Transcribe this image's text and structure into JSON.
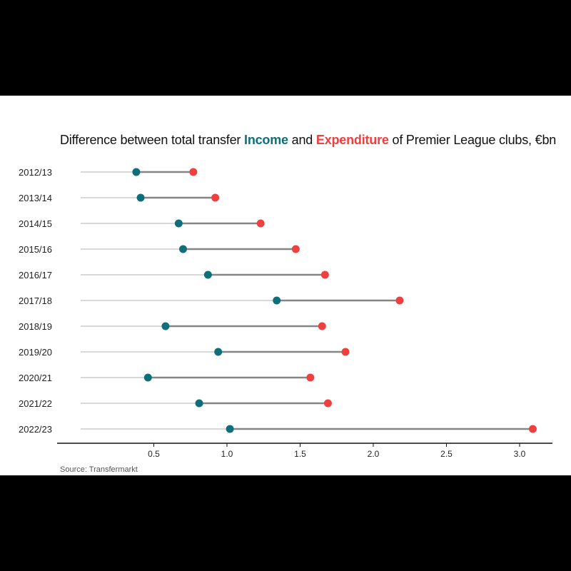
{
  "title": {
    "before": "Difference between total transfer ",
    "income_word": "Income",
    "middle": " and ",
    "expenditure_word": "Expenditure",
    "after": " of Premier League clubs, €bn"
  },
  "source": "Source: Transfermarkt",
  "colors": {
    "income": "#0e6f7b",
    "expenditure": "#ef4040",
    "connector": "#858585",
    "baseline": "#cccccc",
    "axis": "#111111",
    "text": "#222222"
  },
  "chart_data": {
    "type": "dumbbell",
    "title": "Difference between total transfer Income and Expenditure of Premier League clubs, €bn",
    "categories": [
      "2012/13",
      "2013/14",
      "2014/15",
      "2015/16",
      "2016/17",
      "2017/18",
      "2018/19",
      "2019/20",
      "2020/21",
      "2021/22",
      "2022/23"
    ],
    "series": [
      {
        "name": "Income",
        "values": [
          0.38,
          0.41,
          0.67,
          0.7,
          0.87,
          1.34,
          0.58,
          0.94,
          0.46,
          0.81,
          1.02
        ]
      },
      {
        "name": "Expenditure",
        "values": [
          0.77,
          0.92,
          1.23,
          1.47,
          1.67,
          2.18,
          1.65,
          1.81,
          1.57,
          1.69,
          3.09
        ]
      }
    ],
    "xlim": [
      0,
      3.2
    ],
    "xticks": [
      "0.5",
      "1.0",
      "1.5",
      "2.0",
      "2.5",
      "3.0"
    ],
    "grid": false
  }
}
